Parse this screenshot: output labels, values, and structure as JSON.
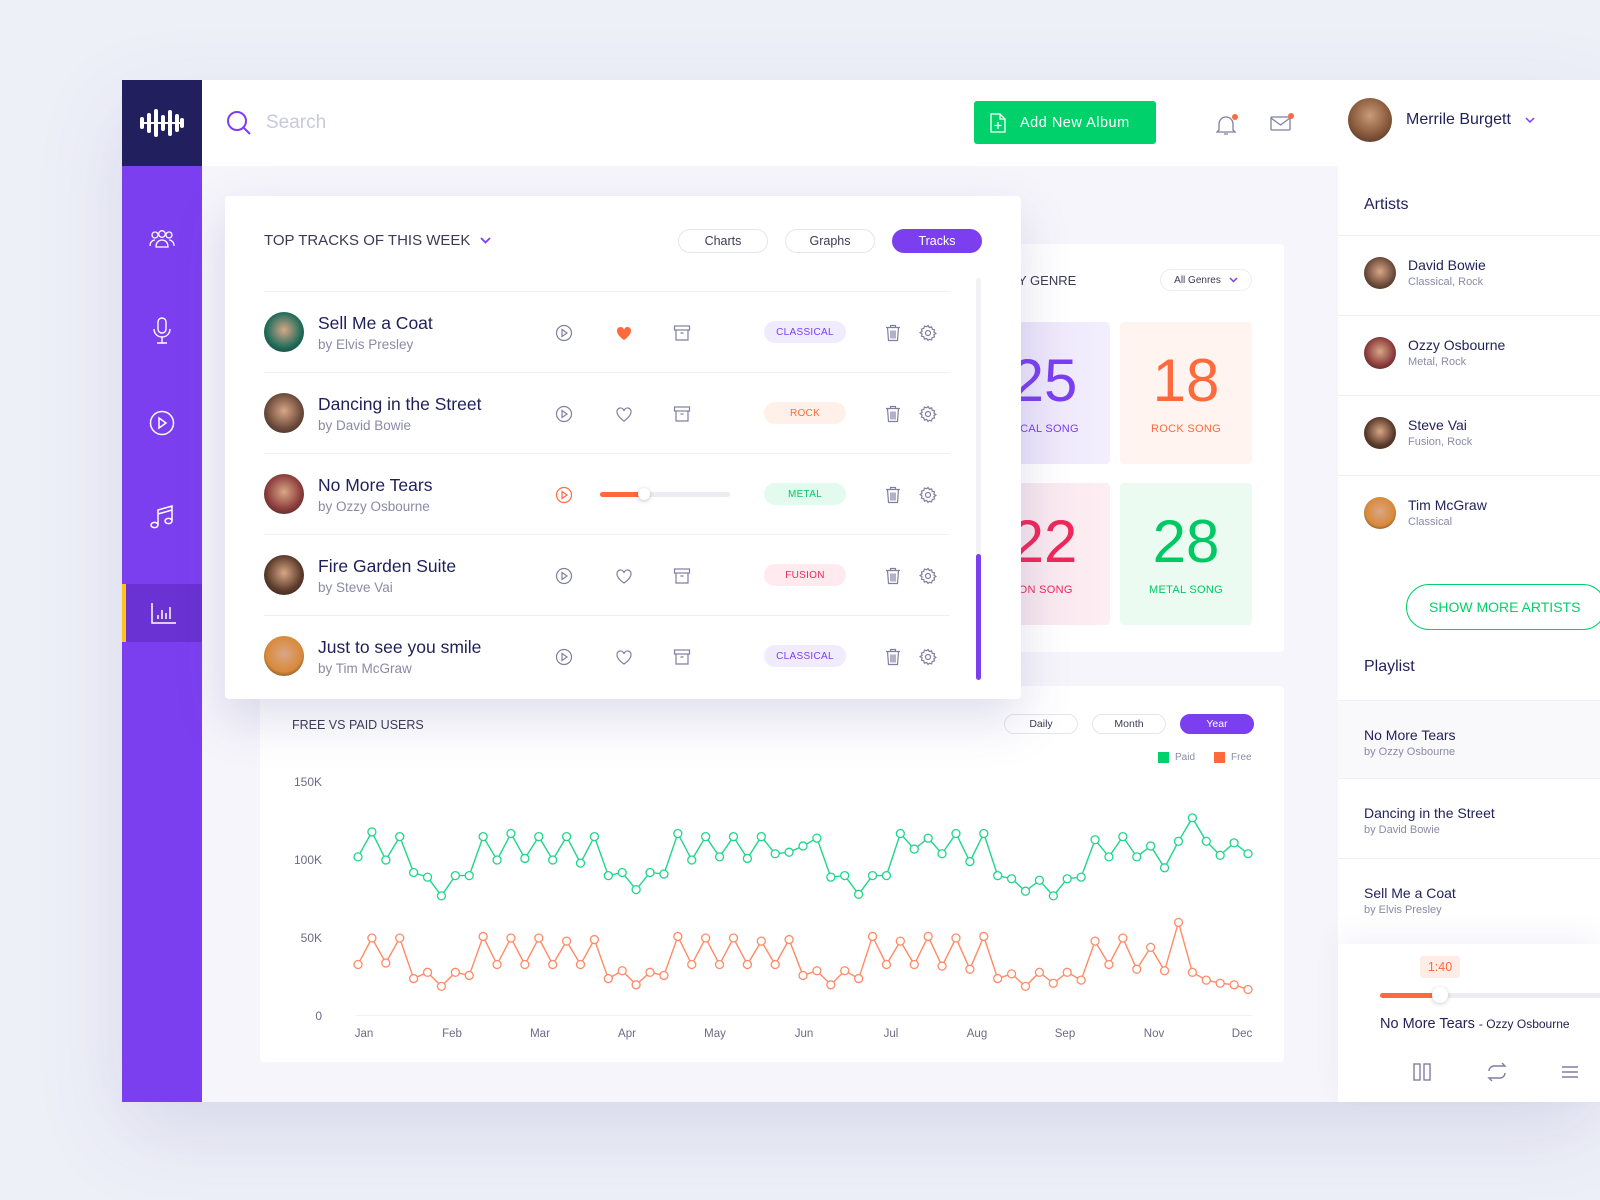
{
  "header": {
    "search_placeholder": "Search",
    "add_button": "Add New Album",
    "user_name": "Merrile Burgett"
  },
  "sidebar": {
    "items": [
      {
        "name": "artists",
        "icon": "users-icon"
      },
      {
        "name": "recordings",
        "icon": "microphone-icon"
      },
      {
        "name": "player",
        "icon": "play-circle-icon"
      },
      {
        "name": "music",
        "icon": "music-note-icon"
      },
      {
        "name": "statistics",
        "icon": "bar-chart-icon",
        "active": true
      }
    ]
  },
  "tracks": {
    "title": "TOP TRACKS OF THIS WEEK",
    "tabs": [
      "Charts",
      "Graphs",
      "Tracks"
    ],
    "active_tab": "Tracks",
    "rows": [
      {
        "title": "Sell Me a Coat",
        "by": "by Elvis Presley",
        "genre": "CLASSICAL",
        "liked": true,
        "playing": false
      },
      {
        "title": "Dancing in the Street",
        "by": "by David Bowie",
        "genre": "ROCK",
        "liked": false,
        "playing": false
      },
      {
        "title": "No More Tears",
        "by": "by Ozzy Osbourne",
        "genre": "METAL",
        "liked": false,
        "playing": true
      },
      {
        "title": "Fire Garden Suite",
        "by": "by Steve Vai",
        "genre": "FUSION",
        "liked": false,
        "playing": false
      },
      {
        "title": "Just to see you smile",
        "by": "by Tim McGraw",
        "genre": "CLASSICAL",
        "liked": false,
        "playing": false
      }
    ]
  },
  "genre": {
    "title": "Y GENRE",
    "select": "All Genres",
    "stats": [
      {
        "num": "25",
        "label": "SICAL SONG",
        "color": "#7b3ff0",
        "bg": "#f2edfd"
      },
      {
        "num": "18",
        "label": "ROCK SONG",
        "color": "#ff6a3d",
        "bg": "#fff4f0"
      },
      {
        "num": "22",
        "label": "ION SONG",
        "color": "#f0285a",
        "bg": "#fdeef2"
      },
      {
        "num": "28",
        "label": "METAL SONG",
        "color": "#00c964",
        "bg": "#ebfbf2"
      }
    ]
  },
  "users_chart": {
    "title": "FREE VS PAID USERS",
    "tabs": [
      "Daily",
      "Month",
      "Year"
    ],
    "active_tab": "Year",
    "legend": [
      "Paid",
      "Free"
    ]
  },
  "chart_data": {
    "type": "line",
    "title": "FREE VS PAID USERS",
    "xlabel": "",
    "ylabel": "",
    "ylim": [
      0,
      150000
    ],
    "yticks": [
      "0",
      "50K",
      "100K",
      "150K"
    ],
    "x_tick_labels": [
      "Jan",
      "Feb",
      "Mar",
      "Apr",
      "May",
      "Jun",
      "Jul",
      "Aug",
      "Sep",
      "Nov",
      "Dec"
    ],
    "grid": false,
    "legend_position": "top-right",
    "series": [
      {
        "name": "Paid",
        "color": "#1fd68a",
        "values": [
          102,
          118,
          100,
          115,
          92,
          89,
          77,
          90,
          90,
          115,
          100,
          117,
          101,
          115,
          100,
          115,
          98,
          115,
          90,
          92,
          81,
          92,
          91,
          117,
          100,
          115,
          102,
          115,
          101,
          115,
          104,
          105,
          109,
          114,
          89,
          90,
          78,
          90,
          90,
          117,
          107,
          114,
          104,
          117,
          99,
          117,
          90,
          88,
          80,
          87,
          77,
          88,
          89,
          113,
          102,
          115,
          102,
          109,
          95,
          112,
          127,
          112,
          103,
          111,
          104
        ]
      },
      {
        "name": "Free",
        "color": "#ff8a65",
        "values": [
          33,
          50,
          34,
          50,
          24,
          28,
          19,
          28,
          26,
          51,
          33,
          50,
          33,
          50,
          33,
          48,
          33,
          49,
          24,
          29,
          20,
          28,
          26,
          51,
          33,
          50,
          33,
          50,
          33,
          48,
          33,
          49,
          26,
          29,
          20,
          29,
          24,
          51,
          33,
          48,
          33,
          51,
          32,
          50,
          30,
          51,
          24,
          27,
          19,
          28,
          21,
          28,
          23,
          48,
          33,
          50,
          30,
          44,
          29,
          60,
          28,
          23,
          21,
          20,
          17
        ]
      }
    ]
  },
  "artists": {
    "title": "Artists",
    "items": [
      {
        "name": "David Bowie",
        "genres": "Classical, Rock"
      },
      {
        "name": "Ozzy Osbourne",
        "genres": "Metal, Rock"
      },
      {
        "name": "Steve Vai",
        "genres": "Fusion, Rock"
      },
      {
        "name": "Tim McGraw",
        "genres": "Classical"
      }
    ],
    "more_button": "SHOW MORE ARTISTS"
  },
  "playlist": {
    "title": "Playlist",
    "items": [
      {
        "title": "No More Tears",
        "by": "by Ozzy Osbourne"
      },
      {
        "title": "Dancing in the Street",
        "by": "by David Bowie"
      },
      {
        "title": "Sell Me a Coat",
        "by": "by Elvis Presley"
      }
    ]
  },
  "player": {
    "time": "1:40",
    "track": "No More Tears",
    "artist": "- Ozzy Osbourne"
  }
}
